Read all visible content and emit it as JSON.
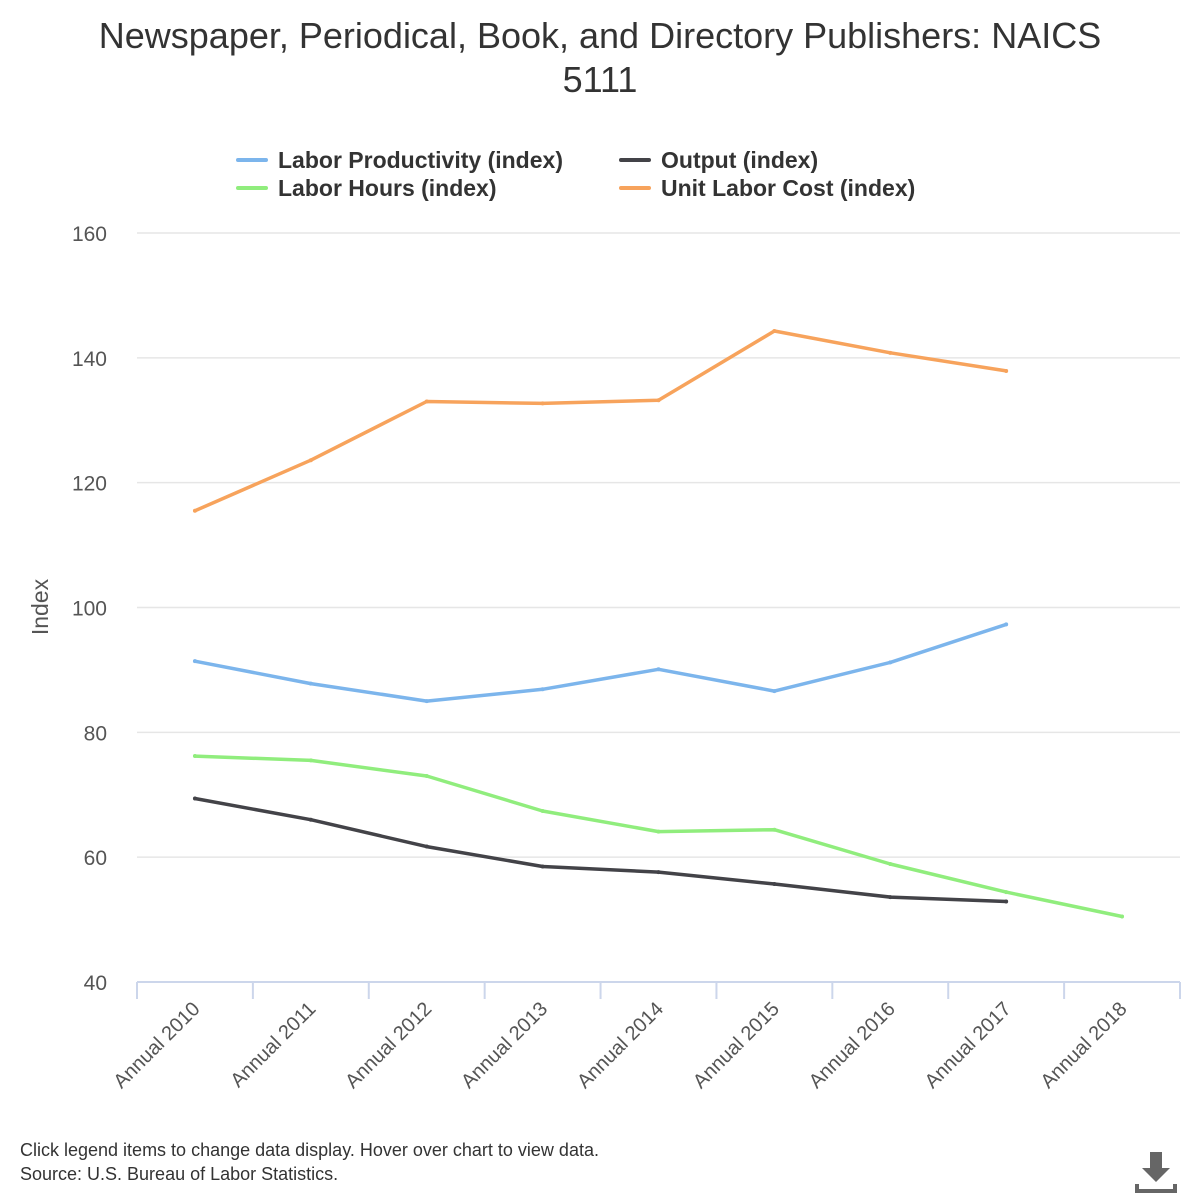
{
  "chart_data": {
    "type": "line",
    "title": "Newspaper, Periodical, Book, and Directory Publishers: NAICS 5111",
    "xlabel": "",
    "ylabel": "Index",
    "ylim": [
      40,
      160
    ],
    "yticks": [
      40,
      60,
      80,
      100,
      120,
      140,
      160
    ],
    "grid": true,
    "legend_position": "top",
    "categories": [
      "Annual 2010",
      "Annual 2011",
      "Annual 2012",
      "Annual 2013",
      "Annual 2014",
      "Annual 2015",
      "Annual 2016",
      "Annual 2017",
      "Annual 2018"
    ],
    "series": [
      {
        "name": "Labor Productivity (index)",
        "color": "#7cb5ec",
        "values": [
          91.4,
          87.8,
          85.0,
          86.9,
          90.1,
          86.6,
          91.2,
          97.3,
          null
        ]
      },
      {
        "name": "Output (index)",
        "color": "#434348",
        "values": [
          69.4,
          66.0,
          61.7,
          58.5,
          57.6,
          55.7,
          53.6,
          52.9,
          null
        ]
      },
      {
        "name": "Labor Hours (index)",
        "color": "#90ed7d",
        "values": [
          76.2,
          75.5,
          73.0,
          67.4,
          64.1,
          64.4,
          58.9,
          54.4,
          50.5
        ]
      },
      {
        "name": "Unit Labor Cost (index)",
        "color": "#f7a35c",
        "values": [
          115.5,
          123.6,
          133.0,
          132.7,
          133.2,
          144.3,
          140.8,
          137.9,
          null
        ]
      }
    ]
  },
  "footer": {
    "line1": "Click legend items to change data display. Hover over chart to view data.",
    "line2": "Source: U.S. Bureau of Labor Statistics."
  },
  "icons": {
    "download": "download-icon"
  }
}
